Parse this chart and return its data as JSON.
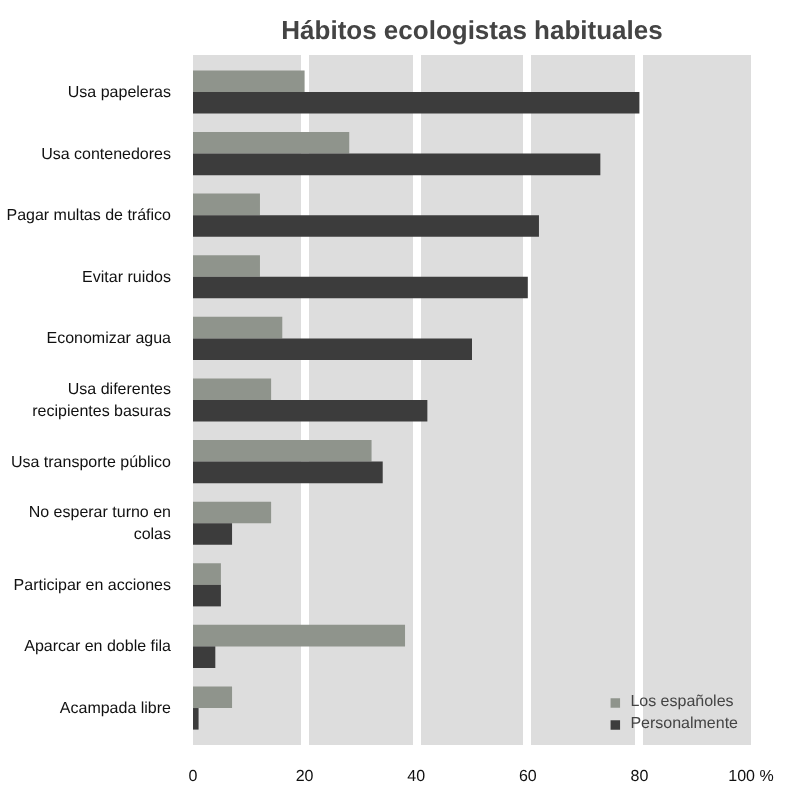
{
  "chart_data": {
    "type": "bar",
    "orientation": "horizontal",
    "title": "Hábitos ecologistas habituales",
    "categories": [
      "Usa papeleras",
      "Usa contenedores",
      "Pagar multas de tráfico",
      "Evitar ruidos",
      "Economizar agua",
      "Usa diferentes\nrecipientes basuras",
      "Usa transporte público",
      "No esperar turno en\ncolas",
      "Participar en acciones",
      "Aparcar en doble fila",
      "Acampada libre"
    ],
    "series": [
      {
        "name": "Los españoles",
        "color": "#8f948c",
        "values": [
          20,
          28,
          12,
          12,
          16,
          14,
          32,
          14,
          5,
          38,
          7
        ]
      },
      {
        "name": "Personalmente",
        "color": "#3c3c3c",
        "values": [
          80,
          73,
          62,
          60,
          50,
          42,
          34,
          7,
          5,
          4,
          1
        ]
      }
    ],
    "xlim": [
      0,
      100
    ],
    "xticks": [
      0,
      20,
      40,
      60,
      80,
      {
        "value": 100,
        "label": "100 %"
      }
    ],
    "grid": "x",
    "legend": "bottom right"
  }
}
